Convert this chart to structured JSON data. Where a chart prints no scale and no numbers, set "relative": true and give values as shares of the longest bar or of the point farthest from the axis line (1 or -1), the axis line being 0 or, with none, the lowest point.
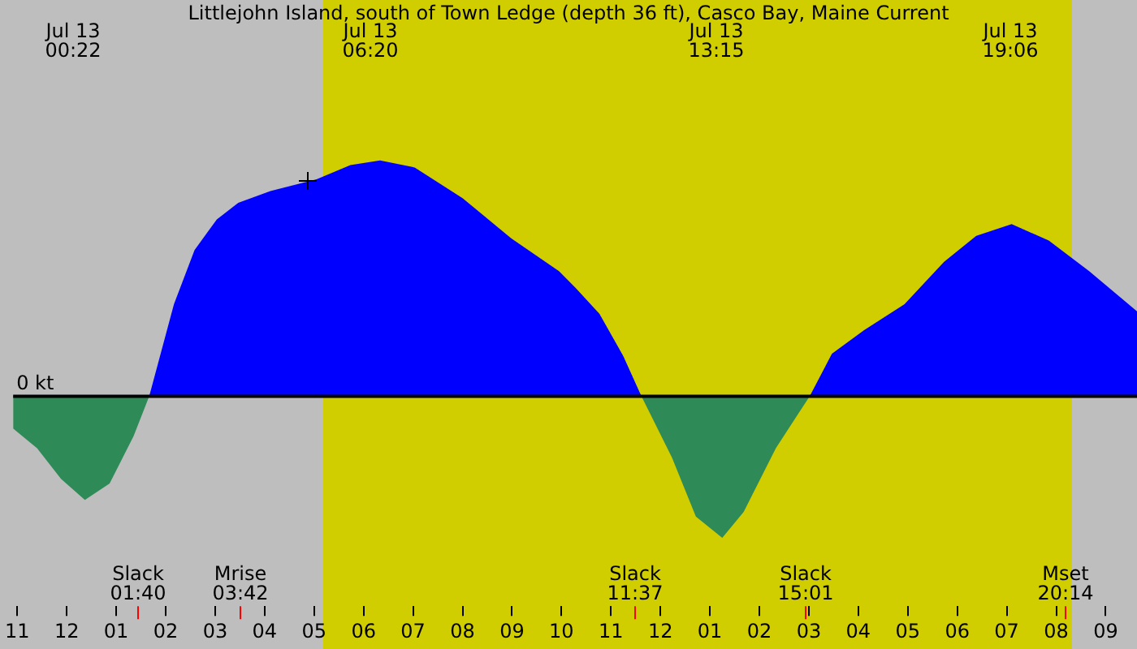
{
  "chart_data": {
    "type": "area",
    "title": "Littlejohn Island, south of Town Ledge (depth 36 ft), Casco Bay, Maine Current",
    "relative": true,
    "x": [
      "--07-12T22:55",
      "--07-12T23:24",
      "--07-12T23:53",
      "--07-13T00:22",
      "--07-13T00:52",
      "--07-13T01:21",
      "--07-13T01:40",
      "--07-13T02:10",
      "--07-13T02:35",
      "--07-13T03:02",
      "--07-13T03:28",
      "--07-13T04:07",
      "--07-13T05:03",
      "--07-13T05:44",
      "--07-13T06:20",
      "--07-13T07:02",
      "--07-13T08:00",
      "--07-13T08:59",
      "--07-13T09:57",
      "--07-13T10:17",
      "--07-13T10:46",
      "--07-13T11:15",
      "--07-13T11:37",
      "--07-13T12:14",
      "--07-13T12:43",
      "--07-13T13:15",
      "--07-13T13:41",
      "--07-13T14:20",
      "--07-13T15:01",
      "--07-13T15:28",
      "--07-13T16:07",
      "--07-13T16:56",
      "--07-13T17:44",
      "--07-13T18:23",
      "--07-13T19:06",
      "--07-13T19:51",
      "--07-13T20:40",
      "--07-13T21:38"
    ],
    "series": [
      {
        "color": "#0000ff",
        "values": [
          null,
          null,
          null,
          null,
          null,
          null,
          0,
          0.39,
          0.62,
          0.75,
          0.82,
          0.87,
          0.92,
          0.98,
          1,
          0.97,
          0.84,
          0.67,
          0.53,
          0.46,
          0.35,
          0.17,
          0,
          null,
          null,
          null,
          null,
          null,
          0,
          0.18,
          0.28,
          0.39,
          0.57,
          0.68,
          0.73,
          0.66,
          0.53,
          0.36
        ]
      },
      {
        "color": "#2e8b57",
        "values": [
          -0.137,
          -0.22,
          -0.35,
          -0.44,
          -0.37,
          -0.17,
          0,
          null,
          null,
          null,
          null,
          null,
          null,
          null,
          null,
          null,
          null,
          null,
          null,
          null,
          null,
          null,
          0,
          -0.26,
          -0.51,
          -0.6,
          -0.49,
          -0.22,
          0,
          null,
          null,
          null,
          null,
          null,
          null,
          null,
          null,
          null
        ]
      }
    ],
    "xlim": [
      "--07-12T22:55",
      "--07-13T21:38"
    ],
    "xticks": [
      {
        "value": "--07-12T23:00",
        "label": "11"
      },
      {
        "value": "--07-13T00:00",
        "label": "12"
      },
      {
        "value": "--07-13T01:00",
        "label": "01"
      },
      {
        "value": "--07-13T02:00",
        "label": "02"
      },
      {
        "value": "--07-13T03:00",
        "label": "03"
      },
      {
        "value": "--07-13T04:00",
        "label": "04"
      },
      {
        "value": "--07-13T05:00",
        "label": "05"
      },
      {
        "value": "--07-13T06:00",
        "label": "06"
      },
      {
        "value": "--07-13T07:00",
        "label": "07"
      },
      {
        "value": "--07-13T08:00",
        "label": "08"
      },
      {
        "value": "--07-13T09:00",
        "label": "09"
      },
      {
        "value": "--07-13T10:00",
        "label": "10"
      },
      {
        "value": "--07-13T11:00",
        "label": "11"
      },
      {
        "value": "--07-13T12:00",
        "label": "12"
      },
      {
        "value": "--07-13T13:00",
        "label": "01"
      },
      {
        "value": "--07-13T14:00",
        "label": "02"
      },
      {
        "value": "--07-13T15:00",
        "label": "03"
      },
      {
        "value": "--07-13T16:00",
        "label": "04"
      },
      {
        "value": "--07-13T17:00",
        "label": "05"
      },
      {
        "value": "--07-13T18:00",
        "label": "06"
      },
      {
        "value": "--07-13T19:00",
        "label": "07"
      },
      {
        "value": "--07-13T20:00",
        "label": "08"
      },
      {
        "value": "--07-13T21:00",
        "label": "09"
      }
    ],
    "ref_lines": [
      {
        "axis": "y",
        "value": 0,
        "label": "0 kt",
        "color": "#000000"
      }
    ],
    "bands": [
      {
        "axis": "x",
        "from": "--07-13T05:11",
        "to": "--07-13T20:19",
        "color": "#d0cd00"
      }
    ],
    "annotations": [
      "Jul 13\n00:22",
      "Jul 13\n06:20",
      "Jul 13\n13:15",
      "Jul 13\n19:06",
      "Slack\n01:40",
      "Mrise\n03:42",
      "Slack\n11:37",
      "Slack\n15:01",
      "Mset\n20:14"
    ],
    "grid": false,
    "legend": false
  }
}
